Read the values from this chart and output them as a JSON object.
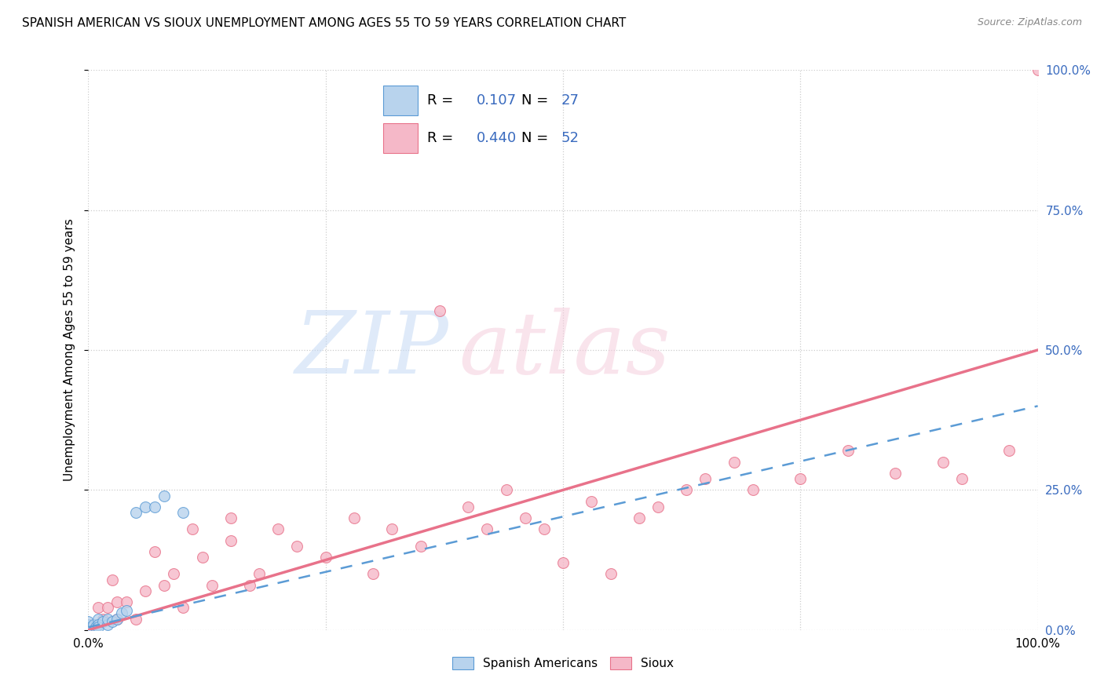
{
  "title": "SPANISH AMERICAN VS SIOUX UNEMPLOYMENT AMONG AGES 55 TO 59 YEARS CORRELATION CHART",
  "source": "Source: ZipAtlas.com",
  "ylabel": "Unemployment Among Ages 55 to 59 years",
  "xlim": [
    0,
    1.0
  ],
  "ylim": [
    0,
    1.0
  ],
  "xticks": [
    0.0,
    0.25,
    0.5,
    0.75,
    1.0
  ],
  "yticks": [
    0.0,
    0.25,
    0.5,
    0.75,
    1.0
  ],
  "xticklabels_bottom": [
    "0.0%",
    "",
    "",
    "",
    "100.0%"
  ],
  "yticklabels_left": [
    "",
    "",
    "",
    "",
    ""
  ],
  "yticklabels_right": [
    "0.0%",
    "25.0%",
    "50.0%",
    "75.0%",
    "100.0%"
  ],
  "blue_R": 0.107,
  "blue_N": 27,
  "pink_R": 0.44,
  "pink_N": 52,
  "blue_face_color": "#b8d3ed",
  "pink_face_color": "#f5b8c8",
  "blue_edge_color": "#5b9bd5",
  "pink_edge_color": "#e8728a",
  "blue_line_color": "#5b9bd5",
  "pink_line_color": "#e8728a",
  "label_blue": "Spanish Americans",
  "label_pink": "Sioux",
  "number_color": "#3a6bbf",
  "grid_color": "#cccccc",
  "background_color": "#ffffff",
  "title_fontsize": 11,
  "axis_label_fontsize": 11,
  "tick_fontsize": 11,
  "right_tick_color": "#3a6bbf",
  "blue_scatter_x": [
    0.0,
    0.0,
    0.0,
    0.0,
    0.0,
    0.0,
    0.0,
    0.0,
    0.0,
    0.003,
    0.005,
    0.008,
    0.01,
    0.01,
    0.01,
    0.015,
    0.02,
    0.02,
    0.025,
    0.03,
    0.035,
    0.04,
    0.05,
    0.06,
    0.07,
    0.08,
    0.1
  ],
  "blue_scatter_y": [
    0.0,
    0.0,
    0.0,
    0.0,
    0.003,
    0.005,
    0.008,
    0.01,
    0.015,
    0.005,
    0.01,
    0.005,
    0.02,
    0.01,
    0.005,
    0.015,
    0.01,
    0.02,
    0.015,
    0.02,
    0.03,
    0.035,
    0.21,
    0.22,
    0.22,
    0.24,
    0.21
  ],
  "pink_scatter_x": [
    0.0,
    0.0,
    0.005,
    0.01,
    0.015,
    0.02,
    0.025,
    0.03,
    0.03,
    0.04,
    0.05,
    0.06,
    0.07,
    0.08,
    0.09,
    0.1,
    0.11,
    0.12,
    0.13,
    0.15,
    0.15,
    0.17,
    0.18,
    0.2,
    0.22,
    0.25,
    0.28,
    0.3,
    0.32,
    0.35,
    0.37,
    0.4,
    0.42,
    0.44,
    0.46,
    0.48,
    0.5,
    0.53,
    0.55,
    0.58,
    0.6,
    0.63,
    0.65,
    0.68,
    0.7,
    0.75,
    0.8,
    0.85,
    0.9,
    0.92,
    0.97,
    1.0
  ],
  "pink_scatter_y": [
    0.0,
    0.01,
    0.01,
    0.04,
    0.02,
    0.04,
    0.09,
    0.02,
    0.05,
    0.05,
    0.02,
    0.07,
    0.14,
    0.08,
    0.1,
    0.04,
    0.18,
    0.13,
    0.08,
    0.16,
    0.2,
    0.08,
    0.1,
    0.18,
    0.15,
    0.13,
    0.2,
    0.1,
    0.18,
    0.15,
    0.57,
    0.22,
    0.18,
    0.25,
    0.2,
    0.18,
    0.12,
    0.23,
    0.1,
    0.2,
    0.22,
    0.25,
    0.27,
    0.3,
    0.25,
    0.27,
    0.32,
    0.28,
    0.3,
    0.27,
    0.32,
    1.0
  ],
  "pink_line_x0": 0.0,
  "pink_line_y0": 0.0,
  "pink_line_x1": 1.0,
  "pink_line_y1": 0.5,
  "blue_line_x0": 0.0,
  "blue_line_y0": 0.005,
  "blue_line_x1": 1.0,
  "blue_line_y1": 0.4
}
